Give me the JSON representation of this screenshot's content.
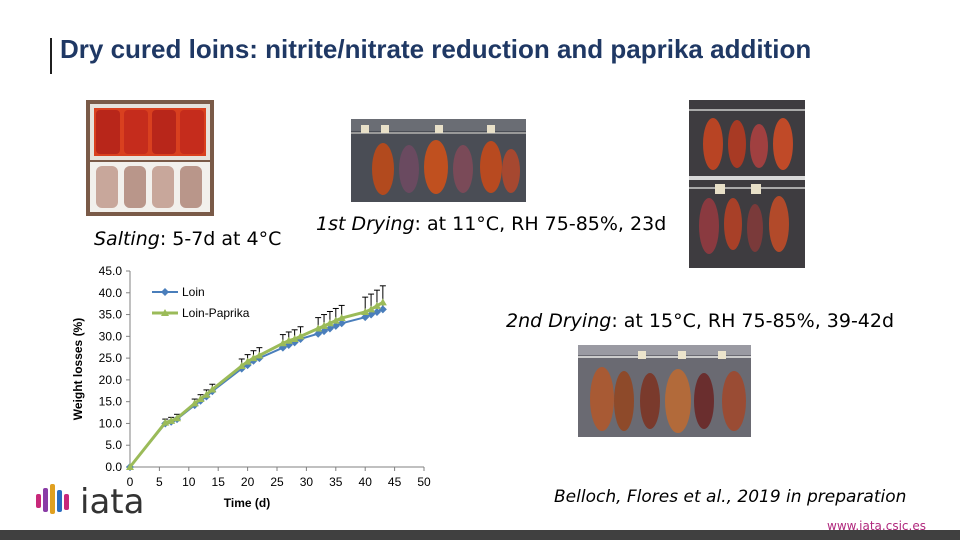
{
  "slide": {
    "title": "Dry cured loins: nitrite/nitrate reduction and paprika addition",
    "captions": {
      "salting": {
        "label": "Salting",
        "text": ": 5-7d at 4°C"
      },
      "first_drying": {
        "label": "1st Drying",
        "text": ": at 11°C, RH 75-85%, 23d"
      },
      "second_drying": {
        "label": "2nd Drying",
        "text": ": at 15°C, RH 75-85%, 39-42d"
      }
    },
    "reference": "Belloch, Flores et al., 2019 in preparation",
    "url": "www.iata.csic.es",
    "logo_text": "iata"
  },
  "colors": {
    "title": "#1f3864",
    "loin": "#4a7ebb",
    "loin_paprika": "#9bbb59",
    "url": "#b0287d"
  },
  "chart_data": {
    "type": "line",
    "xlabel": "Time (d)",
    "ylabel": "Weight losses (%)",
    "xlim": [
      0,
      50
    ],
    "ylim": [
      0,
      45
    ],
    "x_ticks": [
      "0",
      "5",
      "10",
      "15",
      "20",
      "25",
      "30",
      "35",
      "40",
      "45",
      "50"
    ],
    "y_ticks": [
      "0.0",
      "5.0",
      "10.0",
      "15.0",
      "20.0",
      "25.0",
      "30.0",
      "35.0",
      "40.0",
      "45.0"
    ],
    "legend_position": "top-left",
    "grid": false,
    "series": [
      {
        "name": "Loin",
        "marker": "diamond",
        "x": [
          0,
          6,
          7,
          8,
          11,
          12,
          13,
          14,
          19,
          20,
          21,
          22,
          26,
          27,
          28,
          29,
          32,
          33,
          34,
          35,
          36,
          40,
          41,
          42,
          43
        ],
        "y": [
          0,
          10.0,
          10.4,
          11.0,
          14.2,
          15.2,
          16.2,
          17.4,
          22.6,
          23.4,
          24.4,
          25.0,
          27.4,
          28.0,
          28.6,
          29.4,
          30.6,
          31.2,
          31.8,
          32.4,
          33.0,
          34.4,
          35.0,
          35.6,
          36.2
        ],
        "error": [
          0,
          0.8,
          0.8,
          0.9,
          1.0,
          1.0,
          1.1,
          1.2,
          1.6,
          1.6,
          1.7,
          1.8,
          2.0,
          2.0,
          2.1,
          2.2,
          2.5,
          2.6,
          2.7,
          2.8,
          2.9,
          3.4,
          3.5,
          3.6,
          3.8
        ]
      },
      {
        "name": "Loin-Paprika",
        "marker": "triangle",
        "x": [
          0,
          6,
          7,
          8,
          11,
          12,
          13,
          14,
          19,
          20,
          21,
          22,
          26,
          27,
          28,
          29,
          32,
          33,
          34,
          35,
          36,
          40,
          41,
          42,
          43
        ],
        "y": [
          0,
          10.2,
          10.6,
          11.2,
          14.6,
          15.6,
          16.6,
          17.8,
          23.2,
          24.2,
          25.0,
          25.6,
          28.4,
          29.0,
          29.4,
          30.0,
          31.8,
          32.4,
          33.0,
          33.6,
          34.2,
          35.6,
          36.2,
          37.0,
          37.8
        ]
      }
    ]
  }
}
